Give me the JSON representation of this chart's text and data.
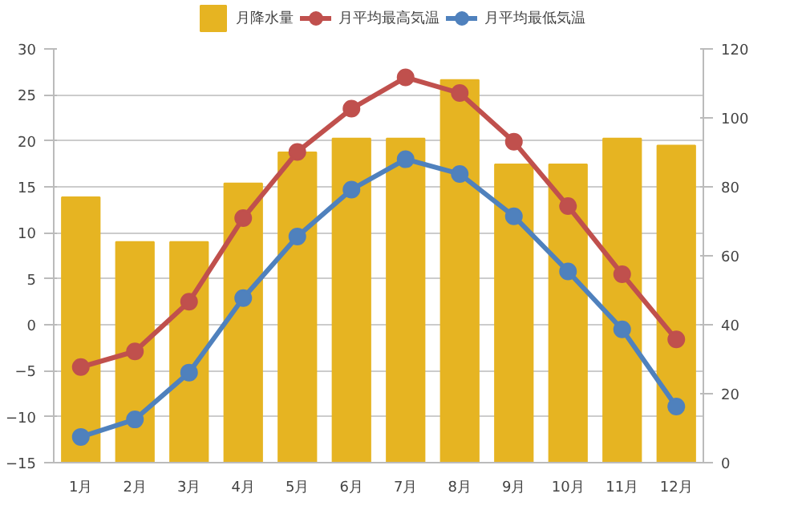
{
  "chart_data": {
    "type": "bar",
    "categories": [
      "1月",
      "2月",
      "3月",
      "4月",
      "5月",
      "6月",
      "7月",
      "8月",
      "9月",
      "10月",
      "11月",
      "12月"
    ],
    "series": [
      {
        "name": "月降水量",
        "axis": "y2",
        "color": "#e6b422",
        "values": [
          77,
          64,
          64,
          81,
          90,
          94,
          94,
          111,
          86.5,
          86.5,
          94,
          92
        ]
      },
      {
        "name": "月平均最高気温",
        "type": "line",
        "color": "#c0504d",
        "values": [
          -4.6,
          -2.9,
          2.5,
          11.6,
          18.8,
          23.5,
          26.9,
          25.2,
          19.9,
          12.9,
          5.5,
          -1.6
        ]
      },
      {
        "name": "月平均最低気温",
        "type": "line",
        "color": "#4f81bd",
        "values": [
          -12.2,
          -10.3,
          -5.2,
          2.9,
          9.6,
          14.7,
          18.0,
          16.4,
          11.8,
          5.8,
          -0.5,
          -8.9
        ]
      }
    ],
    "ylim": [
      -15,
      30
    ],
    "yticks": [
      -15,
      -10,
      -5,
      0,
      5,
      10,
      15,
      20,
      25,
      30
    ],
    "y2lim": [
      0,
      120
    ],
    "y2ticks": [
      0,
      20,
      40,
      60,
      80,
      100,
      120
    ],
    "grid": "y",
    "legend": "top",
    "marker": "circle",
    "line_style": "solid"
  }
}
